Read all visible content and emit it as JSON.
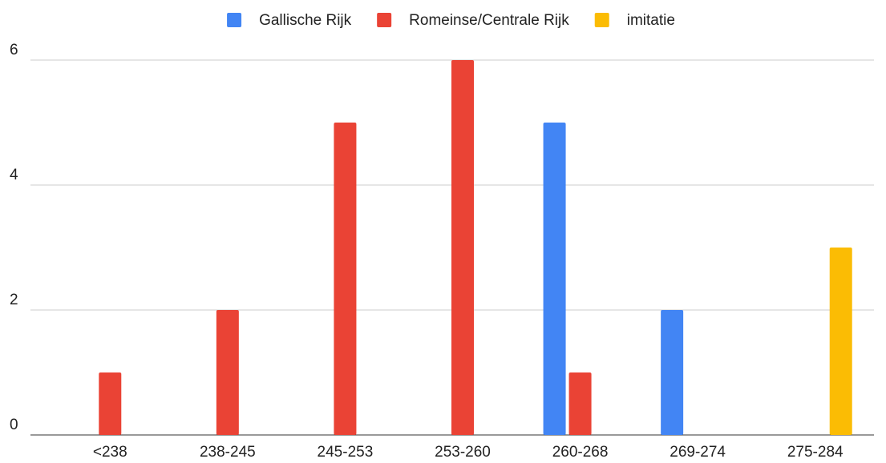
{
  "chart_data": {
    "type": "bar",
    "categories": [
      "<238",
      "238-245",
      "245-253",
      "253-260",
      "260-268",
      "269-274",
      "275-284"
    ],
    "series": [
      {
        "name": "Gallische Rijk",
        "color": "#4285f4",
        "values": [
          0,
          0,
          0,
          0,
          5,
          2,
          0
        ]
      },
      {
        "name": "Romeinse/Centrale Rijk",
        "color": "#ea4335",
        "values": [
          1,
          2,
          5,
          6,
          1,
          0,
          0
        ]
      },
      {
        "name": "imitatie",
        "color": "#fbbc04",
        "values": [
          0,
          0,
          0,
          0,
          0,
          0,
          3
        ]
      }
    ],
    "ylim": [
      0,
      6
    ],
    "yticks": [
      0,
      2,
      4,
      6
    ],
    "grid": true,
    "legend": "top"
  }
}
